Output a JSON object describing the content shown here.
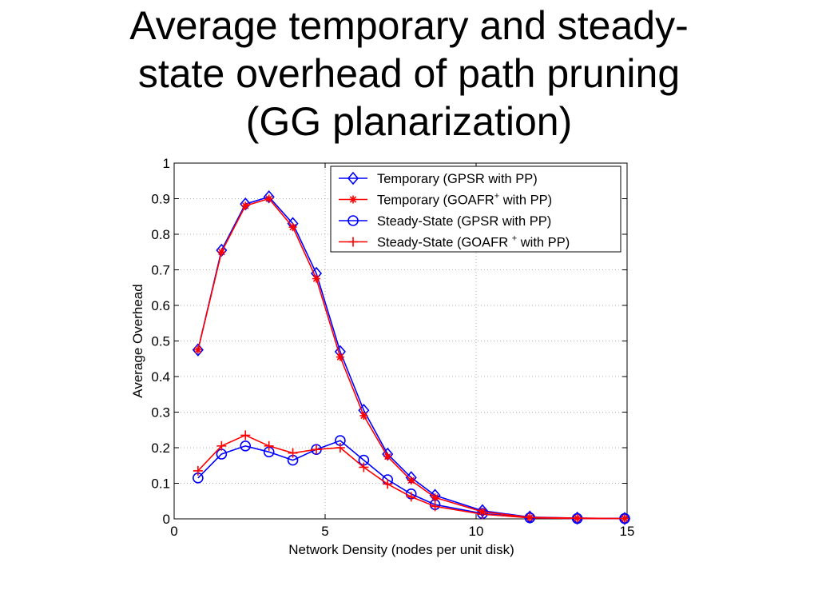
{
  "slide": {
    "title_lines": [
      "Average temporary and steady-",
      "state overhead of path pruning",
      "(GG planarization)"
    ]
  },
  "chart_data": {
    "type": "line",
    "xlabel": "Network Density (nodes per unit disk)",
    "ylabel": "Average Overhead",
    "xlim": [
      0,
      15
    ],
    "ylim": [
      0,
      1
    ],
    "xticks": [
      0,
      5,
      10,
      15
    ],
    "yticks": [
      0,
      0.1,
      0.2,
      0.3,
      0.4,
      0.5,
      0.6,
      0.7,
      0.8,
      0.9,
      1
    ],
    "grid": true,
    "legend_position": "top-right",
    "x": [
      0.79,
      1.57,
      2.36,
      3.14,
      3.93,
      4.71,
      5.5,
      6.28,
      7.07,
      7.85,
      8.64,
      10.21,
      11.78,
      13.35,
      14.92
    ],
    "series": [
      {
        "name": "Temporary (GPSR with PP)",
        "legend": {
          "main": "Temporary (GPSR with PP)",
          "sup": ""
        },
        "color": "#0000ff",
        "marker": "diamond",
        "values": [
          0.475,
          0.755,
          0.885,
          0.905,
          0.83,
          0.69,
          0.47,
          0.305,
          0.182,
          0.116,
          0.066,
          0.023,
          0.005,
          0.002,
          0.001
        ]
      },
      {
        "name": "Temporary (GOAFR+ with PP)",
        "legend": {
          "main": "Temporary (GOAFR",
          "sup": "+",
          "rest": " with PP)"
        },
        "color": "#ff0000",
        "marker": "asterisk",
        "values": [
          0.475,
          0.75,
          0.88,
          0.9,
          0.82,
          0.675,
          0.455,
          0.29,
          0.175,
          0.108,
          0.06,
          0.02,
          0.004,
          0.002,
          0.001
        ]
      },
      {
        "name": "Steady-State (GPSR with PP)",
        "legend": {
          "main": "Steady-State (GPSR with PP)",
          "sup": ""
        },
        "color": "#0000ff",
        "marker": "circle",
        "values": [
          0.115,
          0.182,
          0.205,
          0.188,
          0.165,
          0.195,
          0.22,
          0.165,
          0.11,
          0.07,
          0.04,
          0.015,
          0.003,
          0.001,
          0.001
        ]
      },
      {
        "name": "Steady-State (GOAFR + with PP)",
        "legend": {
          "main": "Steady-State (GOAFR ",
          "sup": "+",
          "rest": " with PP)"
        },
        "color": "#ff0000",
        "marker": "plus",
        "values": [
          0.135,
          0.205,
          0.235,
          0.205,
          0.185,
          0.195,
          0.2,
          0.145,
          0.098,
          0.062,
          0.035,
          0.013,
          0.003,
          0.001,
          0.001
        ]
      }
    ]
  }
}
